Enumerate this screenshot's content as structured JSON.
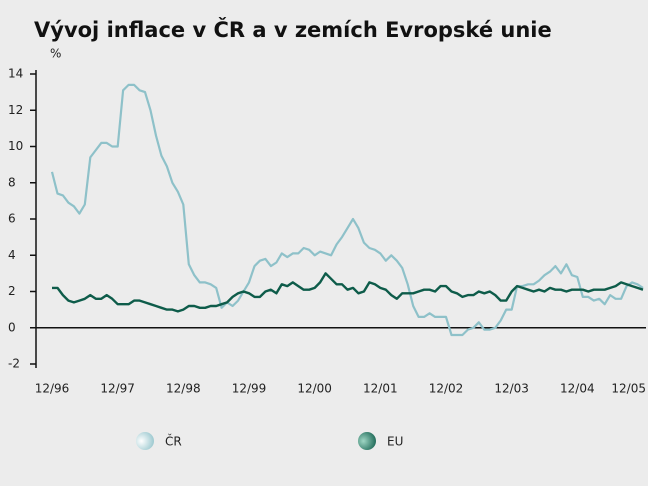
{
  "chart_data": {
    "type": "line",
    "title": "Vývoj inflace v ČR a v zemích Evropské unie",
    "y_label": "%",
    "categories": [
      "12/96",
      null,
      null,
      null,
      null,
      null,
      null,
      null,
      null,
      null,
      null,
      null,
      "12/97",
      null,
      null,
      null,
      null,
      null,
      null,
      null,
      null,
      null,
      null,
      null,
      "12/98",
      null,
      null,
      null,
      null,
      null,
      null,
      null,
      null,
      null,
      null,
      null,
      "12/99",
      null,
      null,
      null,
      null,
      null,
      null,
      null,
      null,
      null,
      null,
      null,
      "12/00",
      null,
      null,
      null,
      null,
      null,
      null,
      null,
      null,
      null,
      null,
      null,
      "12/01",
      null,
      null,
      null,
      null,
      null,
      null,
      null,
      null,
      null,
      null,
      null,
      "12/02",
      null,
      null,
      null,
      null,
      null,
      null,
      null,
      null,
      null,
      null,
      null,
      "12/03",
      null,
      null,
      null,
      null,
      null,
      null,
      null,
      null,
      null,
      null,
      null,
      "12/04",
      null,
      null,
      null,
      null,
      null,
      null,
      null,
      null,
      null,
      null,
      null,
      "12/05"
    ],
    "series": [
      {
        "name": "ČR",
        "color": "#8ec1c9",
        "values": [
          8.6,
          7.4,
          7.3,
          6.9,
          6.7,
          6.3,
          6.8,
          9.4,
          9.8,
          10.2,
          10.2,
          10.0,
          10.0,
          13.1,
          13.4,
          13.4,
          13.1,
          13.0,
          12.0,
          10.6,
          9.5,
          8.9,
          8.0,
          7.5,
          6.8,
          3.5,
          2.9,
          2.5,
          2.5,
          2.4,
          2.2,
          1.1,
          1.4,
          1.2,
          1.5,
          2.0,
          2.5,
          3.4,
          3.7,
          3.8,
          3.4,
          3.6,
          4.1,
          3.9,
          4.1,
          4.1,
          4.4,
          4.3,
          4.0,
          4.2,
          4.1,
          4.0,
          4.6,
          5.0,
          5.5,
          6.0,
          5.5,
          4.7,
          4.4,
          4.3,
          4.1,
          3.7,
          4.0,
          3.7,
          3.3,
          2.4,
          1.2,
          0.6,
          0.6,
          0.8,
          0.6,
          0.6,
          0.6,
          -0.4,
          -0.4,
          -0.4,
          -0.1,
          0.0,
          0.3,
          -0.1,
          -0.1,
          0.0,
          0.4,
          1.0,
          1.0,
          2.3,
          2.3,
          2.4,
          2.4,
          2.6,
          2.9,
          3.1,
          3.4,
          3.0,
          3.5,
          2.9,
          2.8,
          1.7,
          1.7,
          1.5,
          1.6,
          1.3,
          1.8,
          1.6,
          1.6,
          2.3,
          2.5,
          2.4,
          2.2
        ]
      },
      {
        "name": "EU",
        "color": "#0e5c4a",
        "values": [
          2.2,
          2.2,
          1.8,
          1.5,
          1.4,
          1.5,
          1.6,
          1.8,
          1.6,
          1.6,
          1.8,
          1.6,
          1.3,
          1.3,
          1.3,
          1.5,
          1.5,
          1.4,
          1.3,
          1.2,
          1.1,
          1.0,
          1.0,
          0.9,
          1.0,
          1.2,
          1.2,
          1.1,
          1.1,
          1.2,
          1.2,
          1.3,
          1.4,
          1.7,
          1.9,
          2.0,
          1.9,
          1.7,
          1.7,
          2.0,
          2.1,
          1.9,
          2.4,
          2.3,
          2.5,
          2.3,
          2.1,
          2.1,
          2.2,
          2.5,
          3.0,
          2.7,
          2.4,
          2.4,
          2.1,
          2.2,
          1.9,
          2.0,
          2.5,
          2.4,
          2.2,
          2.1,
          1.8,
          1.6,
          1.9,
          1.9,
          1.9,
          2.0,
          2.1,
          2.1,
          2.0,
          2.3,
          2.3,
          2.0,
          1.9,
          1.7,
          1.8,
          1.8,
          2.0,
          1.9,
          2.0,
          1.8,
          1.5,
          1.5,
          2.0,
          2.3,
          2.2,
          2.1,
          2.0,
          2.1,
          2.0,
          2.2,
          2.1,
          2.1,
          2.0,
          2.1,
          2.1,
          2.1,
          2.0,
          2.1,
          2.1,
          2.1,
          2.2,
          2.3,
          2.5,
          2.4,
          2.3,
          2.2,
          2.1
        ]
      }
    ],
    "ylim": [
      -2,
      14
    ],
    "yticks": [
      -2,
      0,
      2,
      4,
      6,
      8,
      10,
      12,
      14
    ]
  }
}
